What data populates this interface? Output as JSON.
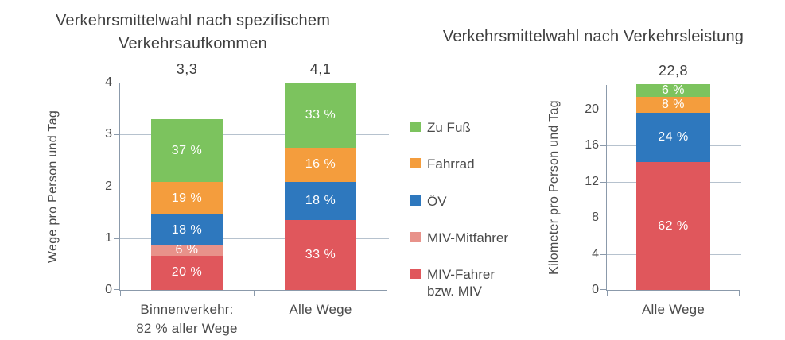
{
  "legend": {
    "items": [
      {
        "label": "Zu Fuß",
        "color": "#7cc35e"
      },
      {
        "label": "Fahrrad",
        "color": "#f49d3d"
      },
      {
        "label": "ÖV",
        "color": "#2e78be"
      },
      {
        "label": "MIV-Mitfahrer",
        "color": "#e8928a"
      },
      {
        "label": "MIV-Fahrer\nbzw. MIV",
        "color": "#e0575c"
      }
    ]
  },
  "colors": {
    "axis": "#8b9aab",
    "gridline": "#b6c2ce",
    "text": "#404040",
    "segment_label": "#ffffff"
  },
  "chart_data": [
    {
      "type": "bar",
      "stacked": true,
      "title": "Verkehrsmittelwahl nach spezifischem\nVerkehrsaufkommen",
      "ylabel": "Wege pro Person und Tag",
      "ylim": [
        0,
        4
      ],
      "yticks": [
        0,
        1,
        2,
        3,
        4
      ],
      "grid": true,
      "categories": [
        "Binnenverkehr:\n82 % aller Wege",
        "Alle Wege"
      ],
      "totals": [
        "3,3",
        "4,1"
      ],
      "totals_numeric": [
        3.3,
        4.1
      ],
      "series": [
        {
          "name": "MIV-Fahrer bzw. MIV",
          "color": "#e0575c",
          "values": [
            20,
            33
          ],
          "labels": [
            "20 %",
            "33 %"
          ]
        },
        {
          "name": "MIV-Mitfahrer",
          "color": "#e8928a",
          "values": [
            6,
            null
          ],
          "labels": [
            "6 %",
            null
          ]
        },
        {
          "name": "ÖV",
          "color": "#2e78be",
          "values": [
            18,
            18
          ],
          "labels": [
            "18 %",
            "18 %"
          ]
        },
        {
          "name": "Fahrrad",
          "color": "#f49d3d",
          "values": [
            19,
            16
          ],
          "labels": [
            "19 %",
            "16 %"
          ]
        },
        {
          "name": "Zu Fuß",
          "color": "#7cc35e",
          "values": [
            37,
            33
          ],
          "labels": [
            "37 %",
            "33 %"
          ]
        }
      ],
      "note": "values are percent shares of the category total; bar heights = share × total trips per person and day, clipped at axis max"
    },
    {
      "type": "bar",
      "stacked": true,
      "title": "Verkehrsmittelwahl nach Verkehrsleistung",
      "ylabel": "Kilometer pro Person und Tag",
      "ylim": [
        0,
        22.8
      ],
      "yticks": [
        0,
        4,
        8,
        12,
        16,
        20
      ],
      "grid": true,
      "categories": [
        "Alle Wege"
      ],
      "totals": [
        "22,8"
      ],
      "totals_numeric": [
        22.8
      ],
      "series": [
        {
          "name": "MIV-Fahrer bzw. MIV",
          "color": "#e0575c",
          "values": [
            62
          ],
          "labels": [
            "62 %"
          ]
        },
        {
          "name": "MIV-Mitfahrer",
          "color": "#e8928a",
          "values": [
            null
          ],
          "labels": [
            null
          ]
        },
        {
          "name": "ÖV",
          "color": "#2e78be",
          "values": [
            24
          ],
          "labels": [
            "24 %"
          ]
        },
        {
          "name": "Fahrrad",
          "color": "#f49d3d",
          "values": [
            8
          ],
          "labels": [
            "8 %"
          ]
        },
        {
          "name": "Zu Fuß",
          "color": "#7cc35e",
          "values": [
            6
          ],
          "labels": [
            "6 %"
          ]
        }
      ],
      "note": "values are percent shares of total kilometres per person and day"
    }
  ]
}
